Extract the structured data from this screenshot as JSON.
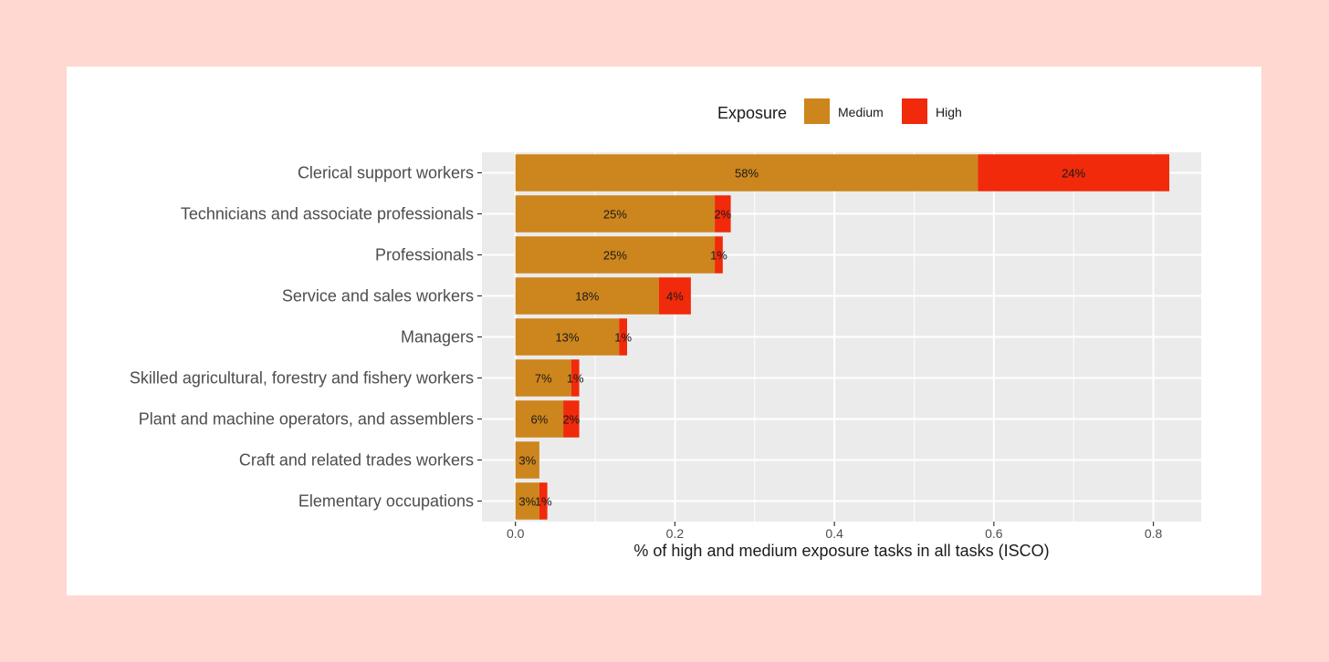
{
  "chart_data": {
    "type": "bar",
    "orientation": "horizontal",
    "stacked": true,
    "xlabel": "% of high and medium exposure tasks in all tasks (ISCO)",
    "xlim": [
      -0.042,
      0.86
    ],
    "xticks": [
      0.0,
      0.2,
      0.4,
      0.6,
      0.8
    ],
    "xtick_labels": [
      "0.0",
      "0.2",
      "0.4",
      "0.6",
      "0.8"
    ],
    "grid": true,
    "legend": {
      "title": "Exposure",
      "placement": "top"
    },
    "categories": [
      "Clerical support workers",
      "Technicians and associate professionals",
      "Professionals",
      "Service and sales workers",
      "Managers",
      "Skilled agricultural, forestry and fishery workers",
      "Plant and machine operators, and assemblers",
      "Craft and related trades workers",
      "Elementary occupations"
    ],
    "series": [
      {
        "name": "Medium",
        "color": "#cd851d",
        "values": [
          0.58,
          0.25,
          0.25,
          0.18,
          0.13,
          0.07,
          0.06,
          0.03,
          0.03
        ],
        "labels": [
          "58%",
          "25%",
          "25%",
          "18%",
          "13%",
          "7%",
          "6%",
          "3%",
          "3%"
        ]
      },
      {
        "name": "High",
        "color": "#f02a0a",
        "values": [
          0.24,
          0.02,
          0.01,
          0.04,
          0.01,
          0.01,
          0.02,
          0.0,
          0.01
        ],
        "labels": [
          "24%",
          "2%",
          "1%",
          "4%",
          "1%",
          "1%",
          "2%",
          "",
          "1%"
        ]
      }
    ]
  }
}
